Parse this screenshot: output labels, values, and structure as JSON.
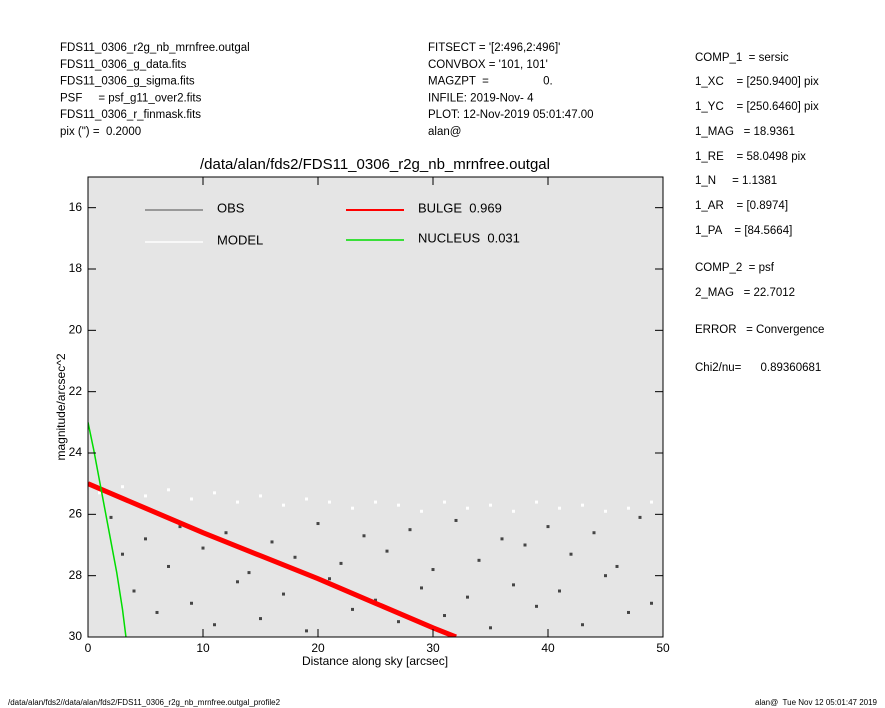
{
  "header": {
    "left": [
      "FDS11_0306_r2g_nb_mrnfree.outgal",
      "FDS11_0306_g_data.fits",
      "FDS11_0306_g_sigma.fits",
      "PSF     = psf_g11_over2.fits",
      "FDS11_0306_r_finmask.fits",
      "pix (\") =  0.2000"
    ],
    "middle": [
      "FITSECT = '[2:496,2:496]'",
      "CONVBOX = '101, 101'",
      "MAGZPT  =                 0.",
      "INFILE: 2019-Nov- 4",
      "PLOT: 12-Nov-2019 05:01:47.00",
      "alan@"
    ],
    "right": [
      "COMP_1  = sersic",
      "1_XC    = [250.9400] pix",
      "1_YC    = [250.6460] pix",
      "1_MAG   = 18.9361",
      "1_RE    = 58.0498 pix",
      "1_N     = 1.1381",
      "1_AR    = [0.8974]",
      "1_PA    = [84.5664]",
      "COMP_2  = psf",
      "2_MAG   = 22.7012",
      "ERROR   = Convergence",
      "Chi2/nu=      0.89360681"
    ]
  },
  "chart_data": {
    "type": "scatter",
    "title": "/data/alan/fds2/FDS11_0306_r2g_nb_mrnfree.outgal",
    "xlabel": "Distance along sky [arcsec]",
    "ylabel": "magnitude/arcsec^2",
    "xlim": [
      0,
      50
    ],
    "ylim": [
      30,
      15
    ],
    "xticks": [
      0,
      10,
      20,
      30,
      40,
      50
    ],
    "yticks": [
      16,
      18,
      20,
      22,
      24,
      26,
      28,
      30
    ],
    "background": "#e5e5e5",
    "series": [
      {
        "name": "OBS",
        "color": "#808080",
        "point_color": "#454545",
        "kind": "points",
        "x": [
          2,
          3,
          4,
          5,
          6,
          7,
          8,
          9,
          10,
          11,
          12,
          13,
          14,
          15,
          16,
          17,
          18,
          19,
          20,
          21,
          22,
          23,
          24,
          25,
          26,
          27,
          28,
          29,
          30,
          31,
          32,
          33,
          34,
          35,
          36,
          37,
          38,
          39,
          40,
          41,
          42,
          43,
          44,
          45,
          46,
          47,
          48,
          49
        ],
        "values": [
          26.1,
          27.3,
          28.5,
          26.8,
          29.2,
          27.7,
          26.4,
          28.9,
          27.1,
          29.6,
          26.6,
          28.2,
          27.9,
          29.4,
          26.9,
          28.6,
          27.4,
          29.8,
          26.3,
          28.1,
          27.6,
          29.1,
          26.7,
          28.8,
          27.2,
          29.5,
          26.5,
          28.4,
          27.8,
          29.3,
          26.2,
          28.7,
          27.5,
          29.7,
          26.8,
          28.3,
          27.0,
          29.0,
          26.4,
          28.5,
          27.3,
          29.6,
          26.6,
          28.0,
          27.7,
          29.2,
          26.1,
          28.9
        ]
      },
      {
        "name": "MODEL",
        "color": "#ffffff",
        "point_color": "#ffffff",
        "kind": "points",
        "x": [
          1,
          3,
          5,
          7,
          9,
          11,
          13,
          15,
          17,
          19,
          21,
          23,
          25,
          27,
          29,
          31,
          33,
          35,
          37,
          39,
          41,
          43,
          45,
          47,
          49
        ],
        "values": [
          25.3,
          25.1,
          25.4,
          25.2,
          25.5,
          25.3,
          25.6,
          25.4,
          25.7,
          25.5,
          25.6,
          25.8,
          25.6,
          25.7,
          25.9,
          25.6,
          25.8,
          25.7,
          25.9,
          25.6,
          25.8,
          25.7,
          25.9,
          25.8,
          25.6
        ]
      },
      {
        "name": "BULGE  0.969",
        "color": "#ff0000",
        "kind": "line",
        "x": [
          0,
          5,
          10,
          15,
          20,
          25,
          30,
          32
        ],
        "values": [
          25,
          25.8,
          26.6,
          27.35,
          28.1,
          28.9,
          29.7,
          30
        ]
      },
      {
        "name": "NUCLEUS  0.031",
        "color": "#00dd00",
        "kind": "line",
        "x": [
          0,
          0.5,
          1,
          1.5,
          2,
          2.5,
          3,
          3.3
        ],
        "values": [
          23,
          23.9,
          24.9,
          25.9,
          26.9,
          27.9,
          29.1,
          30
        ]
      }
    ]
  },
  "footer": {
    "left": "/data/alan/fds2//data/alan/fds2/FDS11_0306_r2g_nb_mrnfree.outgal_profile2",
    "right": "alan@  Tue Nov 12 05:01:47 2019"
  }
}
